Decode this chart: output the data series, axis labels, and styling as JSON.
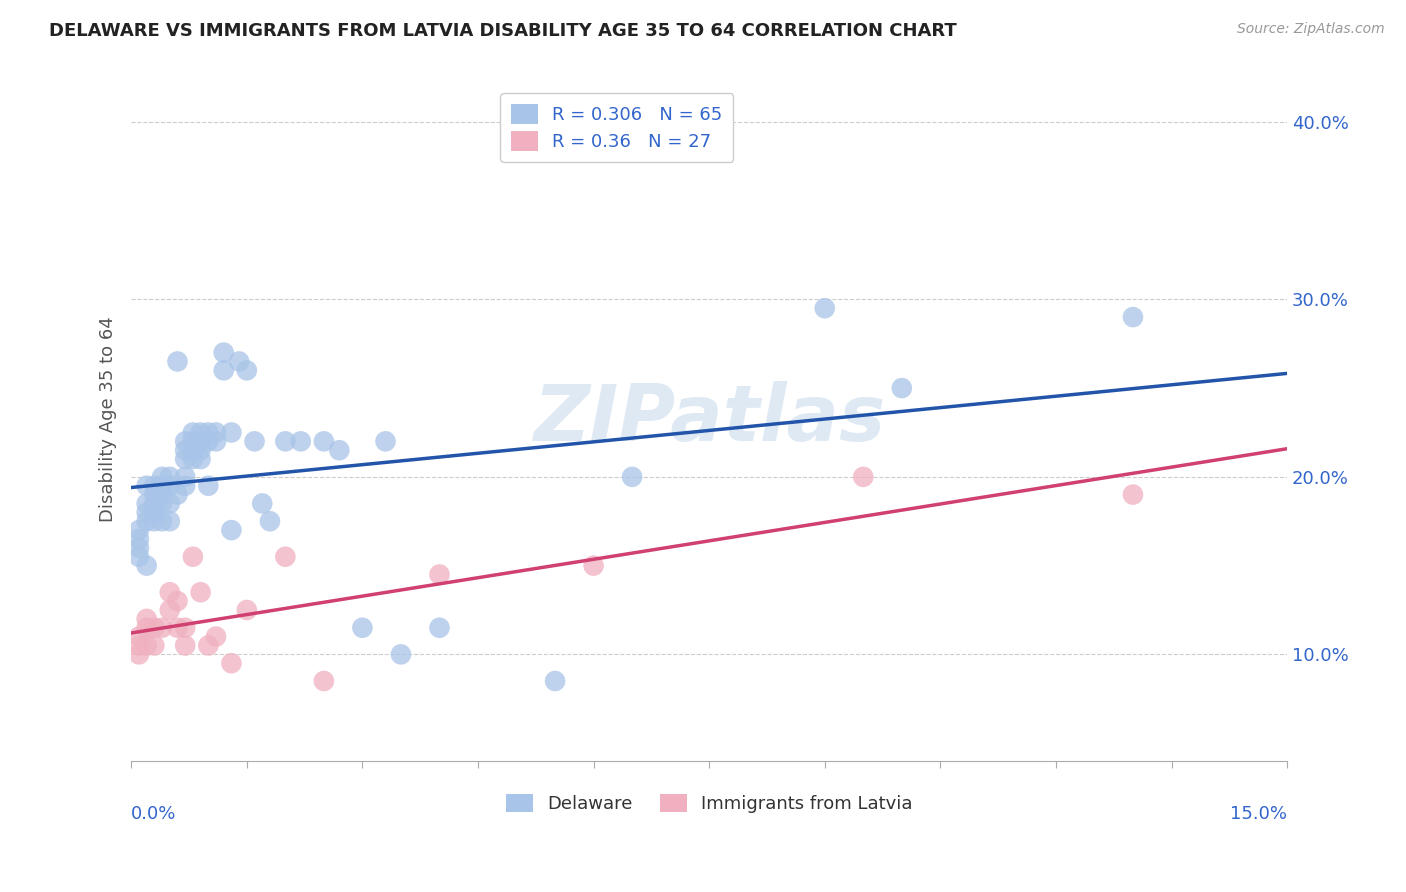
{
  "title": "DELAWARE VS IMMIGRANTS FROM LATVIA DISABILITY AGE 35 TO 64 CORRELATION CHART",
  "source": "Source: ZipAtlas.com",
  "ylabel": "Disability Age 35 to 64",
  "xlim": [
    0.0,
    0.15
  ],
  "ylim": [
    0.04,
    0.425
  ],
  "yticks": [
    0.1,
    0.2,
    0.3,
    0.4
  ],
  "ytick_labels": [
    "10.0%",
    "20.0%",
    "30.0%",
    "40.0%"
  ],
  "xtick_labels_outer": [
    "0.0%",
    "15.0%"
  ],
  "delaware_R": 0.306,
  "delaware_N": 65,
  "latvia_R": 0.36,
  "latvia_N": 27,
  "delaware_color": "#a8c4e8",
  "delaware_line_color": "#2255aa",
  "latvia_color": "#f0b0c0",
  "latvia_line_color": "#d04070",
  "watermark": "ZIPatlas",
  "delaware_scatter_x": [
    0.001,
    0.001,
    0.001,
    0.001,
    0.002,
    0.002,
    0.002,
    0.002,
    0.002,
    0.003,
    0.003,
    0.003,
    0.003,
    0.003,
    0.004,
    0.004,
    0.004,
    0.004,
    0.004,
    0.005,
    0.005,
    0.005,
    0.005,
    0.006,
    0.006,
    0.007,
    0.007,
    0.007,
    0.007,
    0.007,
    0.008,
    0.008,
    0.008,
    0.008,
    0.009,
    0.009,
    0.009,
    0.009,
    0.01,
    0.01,
    0.01,
    0.011,
    0.011,
    0.012,
    0.012,
    0.013,
    0.013,
    0.014,
    0.015,
    0.016,
    0.017,
    0.018,
    0.02,
    0.022,
    0.025,
    0.027,
    0.03,
    0.033,
    0.035,
    0.04,
    0.055,
    0.065,
    0.09,
    0.1,
    0.13
  ],
  "delaware_scatter_y": [
    0.17,
    0.165,
    0.16,
    0.155,
    0.195,
    0.185,
    0.18,
    0.175,
    0.15,
    0.195,
    0.19,
    0.185,
    0.18,
    0.175,
    0.2,
    0.195,
    0.19,
    0.185,
    0.175,
    0.2,
    0.195,
    0.185,
    0.175,
    0.265,
    0.19,
    0.22,
    0.215,
    0.21,
    0.2,
    0.195,
    0.225,
    0.22,
    0.215,
    0.21,
    0.225,
    0.22,
    0.215,
    0.21,
    0.225,
    0.22,
    0.195,
    0.225,
    0.22,
    0.27,
    0.26,
    0.225,
    0.17,
    0.265,
    0.26,
    0.22,
    0.185,
    0.175,
    0.22,
    0.22,
    0.22,
    0.215,
    0.115,
    0.22,
    0.1,
    0.115,
    0.085,
    0.2,
    0.295,
    0.25,
    0.29
  ],
  "latvia_scatter_x": [
    0.001,
    0.001,
    0.001,
    0.002,
    0.002,
    0.002,
    0.003,
    0.003,
    0.004,
    0.005,
    0.005,
    0.006,
    0.006,
    0.007,
    0.007,
    0.008,
    0.009,
    0.01,
    0.011,
    0.013,
    0.015,
    0.02,
    0.025,
    0.04,
    0.06,
    0.095,
    0.13
  ],
  "latvia_scatter_y": [
    0.11,
    0.105,
    0.1,
    0.12,
    0.115,
    0.105,
    0.115,
    0.105,
    0.115,
    0.135,
    0.125,
    0.13,
    0.115,
    0.115,
    0.105,
    0.155,
    0.135,
    0.105,
    0.11,
    0.095,
    0.125,
    0.155,
    0.085,
    0.145,
    0.15,
    0.2,
    0.19
  ],
  "legend_delaware_label": "Delaware",
  "legend_latvia_label": "Immigrants from Latvia"
}
